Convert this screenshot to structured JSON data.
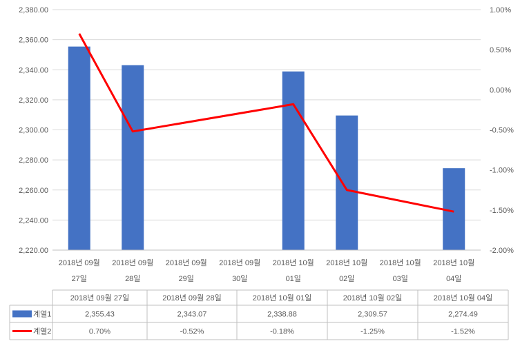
{
  "chart_data": {
    "type": "bar+line",
    "title": "",
    "categories": [
      [
        "2018년 09월",
        "27일"
      ],
      [
        "2018년 09월",
        "28일"
      ],
      [
        "2018년 09월",
        "29일"
      ],
      [
        "2018년 09월",
        "30일"
      ],
      [
        "2018년 10월",
        "01일"
      ],
      [
        "2018년 10월",
        "02일"
      ],
      [
        "2018년 10월",
        "03일"
      ],
      [
        "2018년 10월",
        "04일"
      ]
    ],
    "left_axis": {
      "min": 2220,
      "max": 2380,
      "step": 20,
      "ticks": [
        "2,220.00",
        "2,240.00",
        "2,260.00",
        "2,280.00",
        "2,300.00",
        "2,320.00",
        "2,340.00",
        "2,360.00",
        "2,380.00"
      ]
    },
    "right_axis": {
      "min": -2.0,
      "max": 1.0,
      "step": 0.5,
      "ticks": [
        "-2.00%",
        "-1.50%",
        "-1.00%",
        "-0.50%",
        "0.00%",
        "0.50%",
        "1.00%"
      ]
    },
    "series": [
      {
        "name": "계열1",
        "type": "bar",
        "axis": "left",
        "color": "#4472C4",
        "values": [
          2355.43,
          2343.07,
          null,
          null,
          2338.88,
          2309.57,
          null,
          2274.49
        ]
      },
      {
        "name": "계열2",
        "type": "line",
        "axis": "right",
        "color": "#FF0000",
        "values": [
          0.7,
          -0.52,
          null,
          null,
          -0.18,
          -1.25,
          null,
          -1.52
        ]
      }
    ],
    "grid": true,
    "legend": "data-table",
    "data_table": {
      "headers": [
        "2018년 09월 27일",
        "2018년 09월 28일",
        "2018년 10월 01일",
        "2018년 10월 02일",
        "2018년 10월 04일"
      ],
      "rows": [
        {
          "series": "계열1",
          "marker": "bar",
          "color": "#4472C4",
          "cells": [
            "2,355.43",
            "2,343.07",
            "2,338.88",
            "2,309.57",
            "2,274.49"
          ]
        },
        {
          "series": "계열2",
          "marker": "line",
          "color": "#FF0000",
          "cells": [
            "0.70%",
            "-0.52%",
            "-0.18%",
            "-1.25%",
            "-1.52%"
          ]
        }
      ]
    }
  }
}
